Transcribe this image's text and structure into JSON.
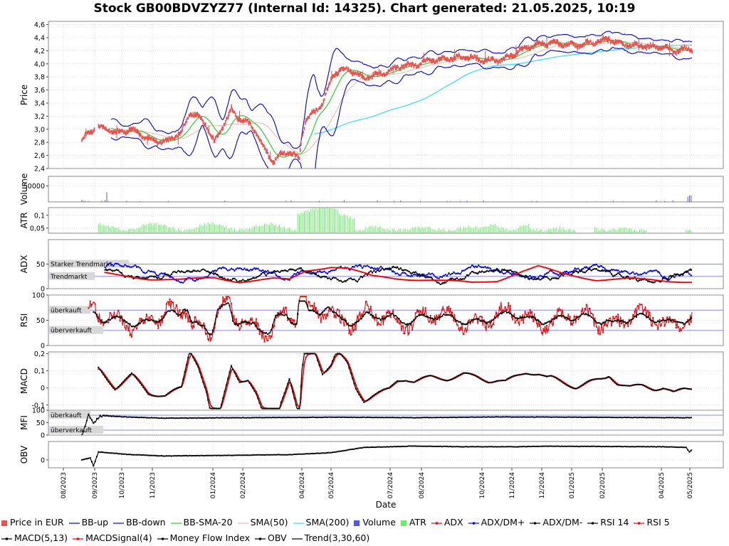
{
  "chart_data": {
    "type": "line",
    "title": "Stock GB00BDVZYZ77 (Internal Id: 14325). Chart generated: 21.05.2025, 10:19",
    "xlabel": "Date",
    "x_ticks": [
      "08/2023",
      "09/2023",
      "10/2023",
      "11/2023",
      "01/2024",
      "02/2024",
      "04/2024",
      "05/2024",
      "07/2024",
      "08/2024",
      "10/2024",
      "11/2024",
      "12/2024",
      "01/2025",
      "02/2025",
      "04/2025",
      "05/2025"
    ],
    "colors": {
      "price": "#e8524f",
      "bb": "#0000cc",
      "bbsma": "#33cc33",
      "sma50": "#f2b3b3",
      "sma200": "#33ddee",
      "volume": "#5555ee",
      "atr": "#66ee66",
      "adx": "#ee0000",
      "dmplus": "#0000ee",
      "dmminus": "#000000",
      "rsi14": "#000000",
      "rsi5": "#ee0000",
      "macd": "#000000",
      "signal": "#ee0000",
      "mfi": "#000000",
      "obv": "#000000",
      "ref": "#8888ee",
      "grid": "#cccccc"
    },
    "panels": [
      {
        "id": "price",
        "ylabel": "Price",
        "ylim": [
          2.4,
          4.65
        ],
        "yticks": [
          "2,4",
          "2,6",
          "2,8",
          "3,0",
          "3,2",
          "3,4",
          "3,6",
          "3,8",
          "4,0",
          "4,2",
          "4,4",
          "4,6"
        ]
      },
      {
        "id": "volume",
        "ylabel": "Volume",
        "ylim": [
          0,
          80000
        ],
        "yticks": [
          "50000"
        ]
      },
      {
        "id": "atr",
        "ylabel": "ATR",
        "ylim": [
          0.03,
          0.13
        ],
        "yticks": [
          "0,05",
          "0,1"
        ]
      },
      {
        "id": "adx",
        "ylabel": "ADX",
        "ylim": [
          0,
          100
        ],
        "yticks": [
          "0",
          "50"
        ],
        "refs": [
          {
            "value": 50,
            "label": "Starker Trendmarkt"
          },
          {
            "value": 25,
            "label": "Trendmarkt"
          }
        ]
      },
      {
        "id": "rsi",
        "ylabel": "RSI",
        "ylim": [
          0,
          100
        ],
        "yticks": [
          "0",
          "50",
          "100"
        ],
        "refs": [
          {
            "value": 70,
            "label": "überkauft"
          },
          {
            "value": 30,
            "label": "überverkauft"
          }
        ]
      },
      {
        "id": "macd",
        "ylabel": "MACD",
        "ylim": [
          -0.13,
          0.21
        ],
        "yticks": [
          "-0,1",
          "0",
          "0,1",
          "0,2"
        ]
      },
      {
        "id": "mfi",
        "ylabel": "MFI",
        "ylim": [
          0,
          100
        ],
        "yticks": [
          "0",
          "50",
          "100"
        ],
        "refs": [
          {
            "value": 80,
            "label": "überkauft"
          },
          {
            "value": 20,
            "label": "überverkauft"
          }
        ]
      },
      {
        "id": "obv",
        "ylabel": "OBV",
        "ylim": [
          -60000,
          140000
        ],
        "yticks": [
          "0"
        ]
      }
    ],
    "price_keyframes": [
      [
        0,
        2.85
      ],
      [
        20,
        3.05
      ],
      [
        40,
        2.95
      ],
      [
        60,
        3.0
      ],
      [
        80,
        2.85
      ],
      [
        100,
        2.8
      ],
      [
        120,
        2.95
      ],
      [
        130,
        3.25
      ],
      [
        140,
        3.2
      ],
      [
        150,
        3.05
      ],
      [
        160,
        2.8
      ],
      [
        170,
        3.05
      ],
      [
        180,
        3.3
      ],
      [
        190,
        3.15
      ],
      [
        200,
        3.1
      ],
      [
        210,
        2.95
      ],
      [
        220,
        2.7
      ],
      [
        230,
        2.5
      ],
      [
        240,
        2.62
      ],
      [
        250,
        2.66
      ],
      [
        262,
        2.55
      ],
      [
        265,
        2.9
      ],
      [
        270,
        3.15
      ],
      [
        280,
        3.25
      ],
      [
        290,
        3.4
      ],
      [
        300,
        3.75
      ],
      [
        305,
        3.85
      ],
      [
        310,
        3.9
      ],
      [
        320,
        3.92
      ],
      [
        330,
        3.85
      ],
      [
        340,
        3.78
      ],
      [
        350,
        3.82
      ],
      [
        360,
        3.85
      ],
      [
        370,
        3.88
      ],
      [
        380,
        3.95
      ],
      [
        390,
        3.98
      ],
      [
        400,
        3.98
      ],
      [
        420,
        4.05
      ],
      [
        440,
        4.08
      ],
      [
        460,
        4.1
      ],
      [
        475,
        4.08
      ],
      [
        490,
        4.05
      ],
      [
        500,
        4.05
      ],
      [
        510,
        4.08
      ],
      [
        520,
        4.15
      ],
      [
        535,
        4.25
      ],
      [
        550,
        4.3
      ],
      [
        565,
        4.32
      ],
      [
        580,
        4.3
      ],
      [
        595,
        4.28
      ],
      [
        610,
        4.32
      ],
      [
        625,
        4.35
      ],
      [
        635,
        4.38
      ],
      [
        645,
        4.32
      ],
      [
        660,
        4.28
      ],
      [
        675,
        4.28
      ],
      [
        690,
        4.25
      ],
      [
        700,
        4.25
      ],
      [
        713,
        4.2
      ],
      [
        725,
        4.22
      ],
      [
        735,
        4.22
      ]
    ],
    "mean_keyframes": [
      [
        0,
        2.9
      ],
      [
        40,
        2.95
      ],
      [
        100,
        2.85
      ],
      [
        140,
        3.05
      ],
      [
        180,
        3.15
      ],
      [
        210,
        3.0
      ],
      [
        250,
        2.6
      ],
      [
        280,
        3.0
      ],
      [
        300,
        3.6
      ],
      [
        330,
        3.85
      ],
      [
        380,
        3.9
      ],
      [
        440,
        4.02
      ],
      [
        500,
        4.0
      ],
      [
        560,
        4.25
      ],
      [
        630,
        4.3
      ],
      [
        735,
        4.22
      ]
    ],
    "adx_keyframes": [
      [
        0,
        38
      ],
      [
        40,
        28
      ],
      [
        80,
        20
      ],
      [
        120,
        18
      ],
      [
        160,
        22
      ],
      [
        190,
        14
      ],
      [
        230,
        20
      ],
      [
        250,
        18
      ],
      [
        270,
        36
      ],
      [
        300,
        45
      ],
      [
        320,
        42
      ],
      [
        350,
        25
      ],
      [
        380,
        20
      ],
      [
        420,
        18
      ],
      [
        470,
        12
      ],
      [
        500,
        16
      ],
      [
        530,
        35
      ],
      [
        550,
        45
      ],
      [
        580,
        30
      ],
      [
        620,
        18
      ],
      [
        660,
        20
      ],
      [
        700,
        16
      ],
      [
        735,
        14
      ]
    ],
    "mfi_keyframes": [
      [
        0,
        0
      ],
      [
        8,
        80
      ],
      [
        14,
        45
      ],
      [
        22,
        78
      ],
      [
        60,
        72
      ],
      [
        100,
        68
      ],
      [
        200,
        70
      ],
      [
        300,
        72
      ],
      [
        400,
        70
      ],
      [
        500,
        73
      ],
      [
        600,
        72
      ],
      [
        700,
        70
      ],
      [
        735,
        70
      ]
    ],
    "obv_keyframes": [
      [
        0,
        0
      ],
      [
        10,
        15000
      ],
      [
        14,
        -45000
      ],
      [
        20,
        60000
      ],
      [
        40,
        50000
      ],
      [
        60,
        40000
      ],
      [
        100,
        30000
      ],
      [
        180,
        35000
      ],
      [
        250,
        40000
      ],
      [
        300,
        55000
      ],
      [
        340,
        95000
      ],
      [
        400,
        105000
      ],
      [
        460,
        100000
      ],
      [
        520,
        100000
      ],
      [
        560,
        104000
      ],
      [
        620,
        102000
      ],
      [
        700,
        100000
      ],
      [
        728,
        95000
      ],
      [
        732,
        60000
      ],
      [
        735,
        78000
      ]
    ],
    "series": [
      {
        "name": "Price in EUR"
      },
      {
        "name": "BB-up"
      },
      {
        "name": "BB-down"
      },
      {
        "name": "BB-SMA-20"
      },
      {
        "name": "SMA(50)"
      },
      {
        "name": "SMA(200)"
      },
      {
        "name": "Volume"
      },
      {
        "name": "ATR"
      },
      {
        "name": "ADX"
      },
      {
        "name": "ADX/DM+"
      },
      {
        "name": "ADX/DM-"
      },
      {
        "name": "RSI 14"
      },
      {
        "name": "RSI 5"
      },
      {
        "name": "MACD(5,13)"
      },
      {
        "name": "MACDSignal(4)"
      },
      {
        "name": "Money Flow Index"
      },
      {
        "name": "OBV"
      },
      {
        "name": "Trend(3,30,60)"
      }
    ]
  },
  "legend": [
    {
      "label": "Price in EUR",
      "icon": "square",
      "color": "#e8524f"
    },
    {
      "label": "BB-up",
      "icon": "line",
      "color": "#0000cc"
    },
    {
      "label": "BB-down",
      "icon": "line",
      "color": "#0000cc"
    },
    {
      "label": "BB-SMA-20",
      "icon": "line",
      "color": "#33cc33"
    },
    {
      "label": "SMA(50)",
      "icon": "line",
      "color": "#f2b3b3"
    },
    {
      "label": "SMA(200)",
      "icon": "line",
      "color": "#33ddee"
    },
    {
      "label": "Volume",
      "icon": "square",
      "color": "#5555ee"
    },
    {
      "label": "ATR",
      "icon": "square",
      "color": "#66ee66"
    },
    {
      "label": "ADX",
      "icon": "dotline",
      "color": "#ee0000"
    },
    {
      "label": "ADX/DM+",
      "icon": "dotline",
      "color": "#0000ee"
    },
    {
      "label": "ADX/DM-",
      "icon": "dotline",
      "color": "#000000"
    },
    {
      "label": "RSI 14",
      "icon": "dotline",
      "color": "#000000"
    },
    {
      "label": "RSI 5",
      "icon": "dotline",
      "color": "#ee0000"
    },
    {
      "label": "MACD(5,13)",
      "icon": "dotline",
      "color": "#000000"
    },
    {
      "label": "MACDSignal(4)",
      "icon": "dotline",
      "color": "#ee0000"
    },
    {
      "label": "Money Flow Index",
      "icon": "dotline",
      "color": "#000000"
    },
    {
      "label": "OBV",
      "icon": "dotline",
      "color": "#000000"
    },
    {
      "label": "Trend(3,30,60)",
      "icon": "line",
      "color": "#000000"
    }
  ]
}
